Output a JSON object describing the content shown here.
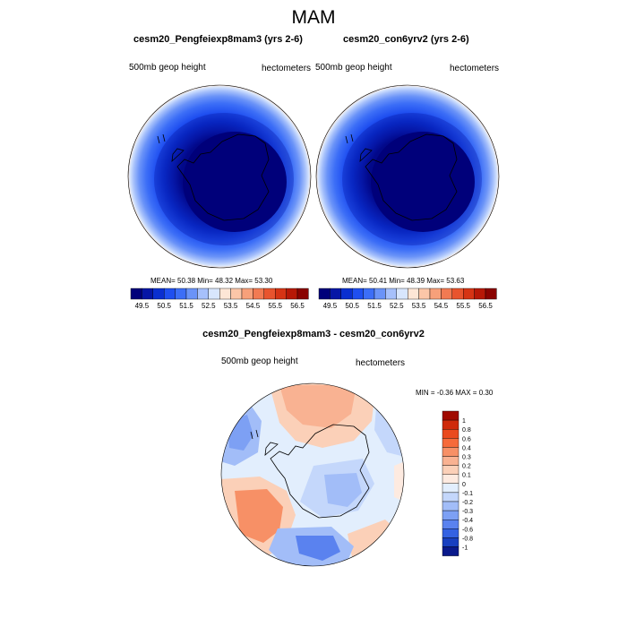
{
  "figure": {
    "title": "MAM"
  },
  "panels": [
    {
      "id": "left",
      "title": "cesm20_Pengfeiexp8mam3 (yrs 2-6)",
      "left_label": "500mb geop height",
      "right_label": "hectometers",
      "stats": "MEAN=  50.38  Min=  48.32  Max=  53.30",
      "map": "south polar stereographic, Antarctica"
    },
    {
      "id": "right",
      "title": "cesm20_con6yrv2 (yrs 2-6)",
      "left_label": "500mb geop height",
      "right_label": "hectometers",
      "stats": "MEAN=  50.41  Min=  48.39  Max=  53.63",
      "map": "south polar stereographic, Antarctica"
    },
    {
      "id": "diff",
      "title": "cesm20_Pengfeiexp8mam3 - cesm20_con6yrv2",
      "left_label": "500mb geop height",
      "right_label": "hectometers",
      "stats": "MIN =  -0.36 MAX =   0.30",
      "map": "south polar stereographic, Antarctica"
    }
  ],
  "colorbars": {
    "horizontal": {
      "tick_labels": [
        "49.5",
        "50.5",
        "51.5",
        "52.5",
        "53.5",
        "54.5",
        "55.5",
        "56.5"
      ],
      "colors": [
        "#00007a",
        "#0616a6",
        "#0a2fd0",
        "#1f4ff0",
        "#3c6ef7",
        "#6a93f8",
        "#a6c0fb",
        "#d8e6fd",
        "#fde6d6",
        "#fbc6a8",
        "#f7a07a",
        "#f27a52",
        "#e8542e",
        "#d63414",
        "#b71806",
        "#8a0300"
      ]
    },
    "vertical": {
      "tick_labels": [
        "1",
        "0.8",
        "0.6",
        "0.4",
        "0.3",
        "0.2",
        "0.1",
        "0",
        "-0.1",
        "-0.2",
        "-0.3",
        "-0.4",
        "-0.6",
        "-0.8",
        "-1"
      ],
      "colors": [
        "#a00a00",
        "#cf2a0a",
        "#ea4a1e",
        "#f66a3a",
        "#f79066",
        "#f9b292",
        "#fbd0b8",
        "#fdeae0",
        "#e2eefd",
        "#c4d7fb",
        "#a2bdf8",
        "#7da0f4",
        "#5a82ef",
        "#3462e2",
        "#1840c0",
        "#0a1a8c"
      ]
    }
  },
  "colors": {
    "pole_dark": "#00007a",
    "ocean_light": "#ffffff",
    "coast": "#000000"
  }
}
